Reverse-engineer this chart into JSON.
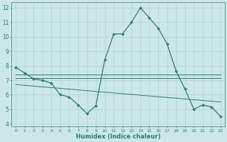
{
  "xlabel": "Humidex (Indice chaleur)",
  "xlim": [
    -0.5,
    23.5
  ],
  "ylim": [
    3.8,
    12.4
  ],
  "yticks": [
    4,
    5,
    6,
    7,
    8,
    9,
    10,
    11,
    12
  ],
  "xticks": [
    0,
    1,
    2,
    3,
    4,
    5,
    6,
    7,
    8,
    9,
    10,
    11,
    12,
    13,
    14,
    15,
    16,
    17,
    18,
    19,
    20,
    21,
    22,
    23
  ],
  "background_color": "#cce8e6",
  "grid_color": "#aad4d0",
  "line_color": "#2d7a6e",
  "main_line": {
    "x": [
      0,
      1,
      2,
      3,
      4,
      5,
      6,
      7,
      8,
      9,
      10,
      11,
      12,
      13,
      14,
      15,
      16,
      17,
      18,
      19,
      20,
      21,
      22,
      23
    ],
    "y": [
      7.9,
      7.5,
      7.1,
      7.0,
      6.8,
      6.0,
      5.85,
      5.3,
      4.7,
      5.25,
      8.4,
      10.2,
      10.2,
      11.0,
      12.0,
      11.3,
      10.6,
      9.5,
      7.65,
      6.4,
      5.0,
      5.3,
      5.15,
      4.5
    ]
  },
  "flat_lines": [
    {
      "x": [
        0,
        23
      ],
      "y": [
        7.4,
        7.4
      ]
    },
    {
      "x": [
        0,
        23
      ],
      "y": [
        7.15,
        7.15
      ]
    },
    {
      "x": [
        0,
        23
      ],
      "y": [
        6.7,
        5.5
      ]
    }
  ]
}
